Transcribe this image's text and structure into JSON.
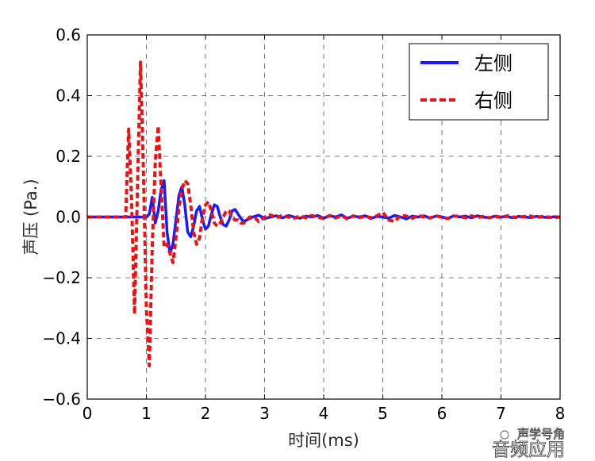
{
  "chart_data": {
    "type": "line",
    "title": "",
    "xlabel": "时间(ms)",
    "ylabel": "声压 (Pa.)",
    "xlim": [
      0,
      8
    ],
    "ylim": [
      -0.6,
      0.6
    ],
    "x_ticks": [
      0,
      1,
      2,
      3,
      4,
      5,
      6,
      7,
      8
    ],
    "y_ticks": [
      -0.6,
      -0.4,
      -0.2,
      0.0,
      0.2,
      0.4,
      0.6
    ],
    "x_tick_labels": [
      "0",
      "1",
      "2",
      "3",
      "4",
      "5",
      "6",
      "7",
      "8"
    ],
    "y_tick_labels": [
      "−0.6",
      "−0.4",
      "−0.2",
      "0.0",
      "0.2",
      "0.4",
      "0.6"
    ],
    "grid": true,
    "legend_position": "top-right",
    "series": [
      {
        "name": "左侧",
        "color": "#1a1aff",
        "style": "solid",
        "x": [
          0,
          1.0,
          1.05,
          1.1,
          1.15,
          1.2,
          1.25,
          1.3,
          1.35,
          1.4,
          1.45,
          1.5,
          1.55,
          1.6,
          1.65,
          1.7,
          1.75,
          1.8,
          1.85,
          1.9,
          1.95,
          2.0,
          2.05,
          2.1,
          2.15,
          2.2,
          2.25,
          2.3,
          2.35,
          2.4,
          2.45,
          2.5,
          2.55,
          2.6,
          2.65,
          2.7,
          2.8,
          2.9,
          3.0,
          3.1,
          3.2,
          3.3,
          3.4,
          3.5,
          3.6,
          3.7,
          3.8,
          3.9,
          4.0,
          4.1,
          4.2,
          4.3,
          4.4,
          4.5,
          4.6,
          4.7,
          4.8,
          4.9,
          5.0,
          5.1,
          5.2,
          5.3,
          5.4,
          5.5,
          5.6,
          5.7,
          5.8,
          5.9,
          6.0,
          6.1,
          6.2,
          6.3,
          6.4,
          6.5,
          6.6,
          6.7,
          6.8,
          6.9,
          7.0,
          7.1,
          7.2,
          7.3,
          7.4,
          7.5,
          7.6,
          7.7,
          7.8,
          7.9,
          8.0
        ],
        "y": [
          0.0,
          0.0,
          0.01,
          0.065,
          -0.02,
          0.02,
          0.09,
          0.12,
          -0.05,
          -0.12,
          -0.09,
          -0.01,
          0.07,
          0.1,
          0.04,
          -0.05,
          -0.065,
          -0.03,
          0.02,
          0.035,
          -0.01,
          -0.04,
          -0.03,
          0.01,
          0.04,
          0.035,
          0.0,
          -0.025,
          -0.03,
          -0.01,
          0.02,
          0.025,
          0.01,
          -0.005,
          -0.015,
          -0.01,
          0.0,
          0.006,
          -0.005,
          0.0,
          0.004,
          -0.003,
          0.005,
          0.0,
          -0.004,
          0.003,
          0.0,
          0.005,
          -0.004,
          0.004,
          0.0,
          0.007,
          -0.004,
          0.003,
          0.0,
          0.004,
          -0.005,
          0.002,
          0.0,
          -0.004,
          0.005,
          0.0,
          -0.006,
          0.003,
          0.0,
          0.004,
          -0.004,
          0.003,
          0.0,
          -0.005,
          0.004,
          0.0,
          0.003,
          -0.003,
          0.004,
          0.0,
          -0.003,
          0.003,
          0.0,
          0.002,
          -0.003,
          0.002,
          0.0,
          -0.002,
          0.002,
          0.0,
          -0.002,
          0.001,
          0.0
        ]
      },
      {
        "name": "右侧",
        "color": "#ee1111",
        "style": "dashed",
        "x": [
          0,
          0.65,
          0.7,
          0.75,
          0.8,
          0.85,
          0.9,
          0.95,
          1.0,
          1.05,
          1.1,
          1.15,
          1.2,
          1.25,
          1.3,
          1.35,
          1.4,
          1.45,
          1.5,
          1.55,
          1.6,
          1.65,
          1.7,
          1.75,
          1.8,
          1.85,
          1.9,
          1.95,
          2.0,
          2.05,
          2.1,
          2.15,
          2.2,
          2.25,
          2.3,
          2.35,
          2.4,
          2.45,
          2.5,
          2.55,
          2.6,
          2.65,
          2.7,
          2.75,
          2.8,
          2.85,
          2.9,
          3.0,
          3.1,
          3.2,
          3.3,
          3.4,
          3.5,
          3.6,
          3.7,
          3.8,
          3.9,
          4.0,
          4.1,
          4.2,
          4.3,
          4.4,
          4.5,
          4.6,
          4.7,
          4.8,
          4.9,
          5.0,
          5.1,
          5.2,
          5.3,
          5.4,
          5.5,
          5.6,
          5.7,
          5.8,
          5.9,
          6.0,
          6.1,
          6.2,
          6.3,
          6.4,
          6.5,
          6.6,
          6.7,
          6.8,
          6.9,
          7.0,
          7.1,
          7.2,
          7.3,
          7.4,
          7.5,
          7.6,
          7.7,
          7.8,
          7.9,
          8.0
        ],
        "y": [
          0.0,
          0.0,
          0.29,
          0.05,
          -0.32,
          0.1,
          0.51,
          0.15,
          -0.3,
          -0.49,
          -0.1,
          0.18,
          0.3,
          0.1,
          -0.1,
          -0.09,
          -0.12,
          -0.15,
          -0.07,
          0.03,
          0.09,
          0.12,
          0.11,
          0.04,
          -0.05,
          -0.09,
          -0.07,
          0.0,
          0.04,
          0.05,
          0.02,
          -0.02,
          -0.03,
          -0.02,
          0.0,
          0.02,
          0.02,
          0.0,
          -0.01,
          -0.01,
          -0.02,
          -0.02,
          -0.01,
          0.0,
          0.0,
          -0.005,
          -0.015,
          0.0,
          0.007,
          -0.003,
          0.005,
          0.0,
          -0.004,
          0.004,
          -0.003,
          0.005,
          0.0,
          -0.005,
          0.005,
          -0.003,
          0.004,
          -0.006,
          0.004,
          -0.002,
          0.003,
          -0.002,
          0.004,
          0.015,
          -0.01,
          -0.015,
          0.005,
          0.003,
          -0.004,
          0.005,
          0.0,
          -0.003,
          0.004,
          0.0,
          -0.005,
          0.003,
          0.002,
          -0.003,
          0.004,
          -0.002,
          0.002,
          -0.003,
          0.003,
          -0.002,
          0.004,
          0.0,
          -0.002,
          0.002,
          0.003,
          -0.002,
          0.002,
          0.0,
          -0.002,
          0.0
        ]
      }
    ]
  },
  "watermark": {
    "line1": "声学号角",
    "line2": "音频应用"
  }
}
